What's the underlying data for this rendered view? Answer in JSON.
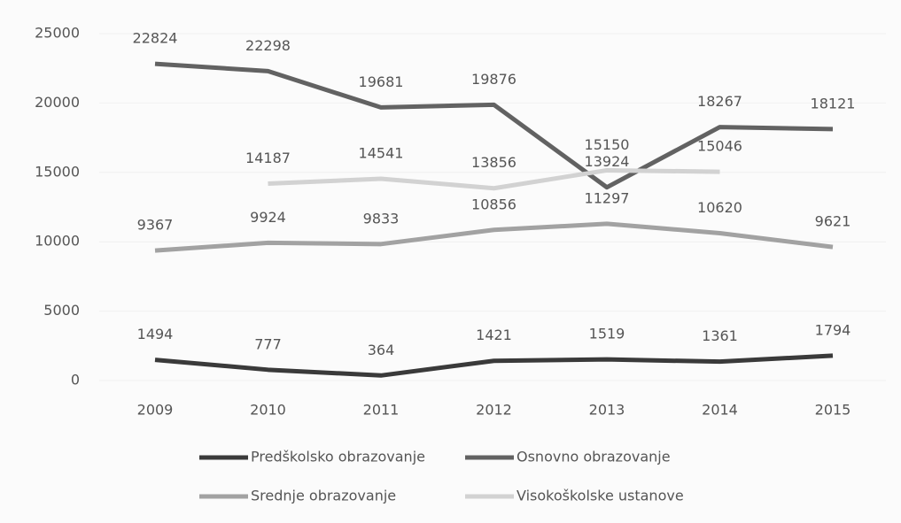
{
  "chart_data": {
    "type": "line",
    "categories": [
      "2009",
      "2010",
      "2011",
      "2012",
      "2013",
      "2014",
      "2015"
    ],
    "series": [
      {
        "name": "Predškolsko obrazovanje",
        "color": "#3a3a3a",
        "values": [
          1494,
          777,
          364,
          1421,
          1519,
          1361,
          1794
        ]
      },
      {
        "name": "Osnovno obrazovanje",
        "color": "#626262",
        "values": [
          22824,
          22298,
          19681,
          19876,
          13924,
          18267,
          18121
        ]
      },
      {
        "name": "Srednje obrazovanje",
        "color": "#a2a2a2",
        "values": [
          9367,
          9924,
          9833,
          10856,
          11297,
          10620,
          9621
        ]
      },
      {
        "name": "Visokoškolske ustanove",
        "color": "#d2d2d2",
        "values": [
          null,
          14187,
          14541,
          13856,
          15150,
          15046,
          null
        ]
      }
    ],
    "ylim": [
      0,
      25000
    ],
    "yticks": [
      0,
      5000,
      10000,
      15000,
      20000,
      25000
    ],
    "grid": true
  }
}
